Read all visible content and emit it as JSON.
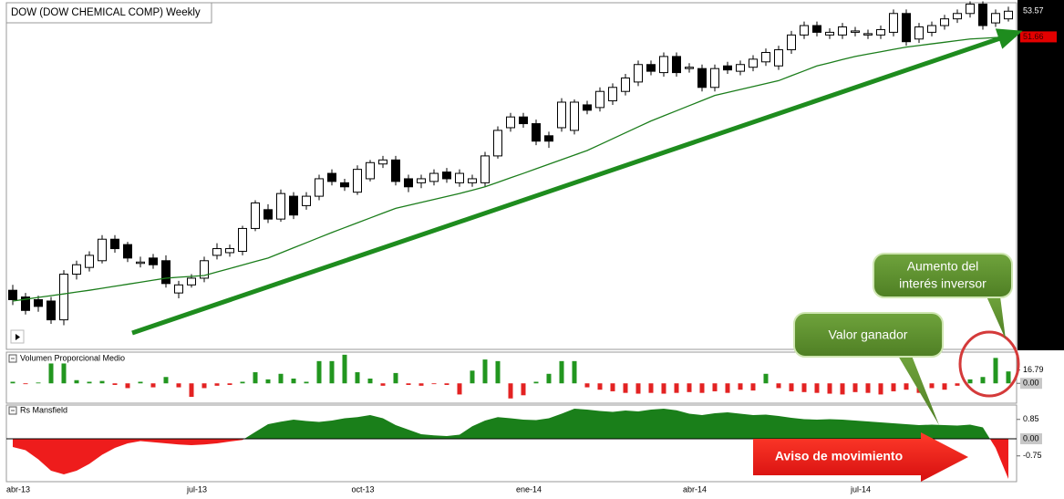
{
  "chart_data": [
    {
      "type": "candlestick",
      "title": "DOW (DOW CHEMICAL COMP) Weekly",
      "categories": [
        "abr-13",
        null,
        null,
        null,
        null,
        null,
        null,
        null,
        null,
        null,
        null,
        null,
        null,
        null,
        "jul-13",
        null,
        null,
        null,
        null,
        null,
        null,
        null,
        null,
        null,
        null,
        null,
        null,
        "oct-13",
        null,
        null,
        null,
        null,
        null,
        null,
        null,
        null,
        null,
        null,
        null,
        null,
        "ene-14",
        null,
        null,
        null,
        null,
        null,
        null,
        null,
        null,
        null,
        null,
        null,
        null,
        "abr-14",
        null,
        null,
        null,
        null,
        null,
        null,
        null,
        null,
        null,
        null,
        null,
        null,
        "jul-14",
        null,
        null,
        null,
        null,
        null,
        null,
        null,
        null,
        null,
        null,
        null,
        null
      ],
      "open": [
        32.8,
        32.3,
        32.1,
        32.0,
        30.6,
        34.0,
        34.5,
        35.0,
        36.6,
        36.2,
        34.8,
        35.2,
        35.0,
        32.6,
        33.2,
        33.7,
        35.4,
        35.6,
        35.7,
        37.4,
        38.8,
        38.1,
        39.8,
        39.1,
        39.8,
        41.5,
        40.8,
        40.1,
        41.1,
        42.2,
        42.5,
        41.1,
        40.8,
        40.9,
        41.6,
        40.8,
        40.8,
        40.8,
        42.8,
        44.9,
        45.7,
        45.2,
        44.3,
        44.9,
        44.7,
        46.6,
        46.4,
        46.9,
        47.6,
        48.3,
        49.6,
        49.0,
        50.2,
        49.3,
        49.3,
        47.9,
        49.5,
        49.1,
        49.4,
        49.8,
        49.5,
        50.7,
        51.8,
        52.5,
        51.8,
        51.8,
        52.0,
        51.8,
        51.8,
        52.0,
        53.4,
        51.5,
        52.0,
        52.5,
        53.0,
        53.4,
        54.1,
        52.7,
        53.0
      ],
      "high": [
        33.2,
        32.6,
        32.4,
        32.3,
        34.3,
        35.0,
        35.7,
        36.9,
        36.9,
        36.4,
        35.3,
        35.5,
        35.4,
        33.5,
        34.0,
        35.3,
        36.3,
        36.2,
        37.6,
        39.5,
        39.2,
        40.3,
        40.1,
        40.1,
        41.4,
        41.8,
        41.1,
        42.1,
        42.5,
        42.8,
        42.8,
        41.4,
        41.4,
        41.8,
        41.9,
        41.8,
        41.4,
        43.1,
        45.0,
        46.0,
        46.0,
        45.5,
        44.6,
        47.1,
        47.0,
        46.9,
        47.9,
        48.2,
        48.9,
        49.9,
        49.9,
        50.5,
        50.5,
        49.7,
        49.6,
        49.6,
        49.8,
        49.9,
        50.3,
        50.8,
        51.0,
        52.1,
        52.8,
        52.8,
        52.3,
        52.7,
        52.4,
        52.2,
        52.5,
        53.7,
        53.7,
        52.7,
        52.8,
        53.3,
        53.7,
        54.3,
        54.3,
        53.7,
        53.9
      ],
      "low": [
        31.7,
        31.0,
        31.2,
        30.3,
        30.2,
        33.6,
        34.2,
        34.8,
        35.6,
        34.9,
        34.5,
        34.4,
        33.0,
        32.2,
        33.0,
        33.4,
        35.1,
        35.3,
        35.4,
        37.2,
        37.8,
        37.9,
        38.1,
        38.8,
        39.5,
        40.6,
        40.2,
        39.9,
        40.9,
        41.9,
        40.6,
        40.1,
        40.4,
        40.6,
        40.8,
        40.5,
        40.5,
        40.5,
        42.6,
        44.6,
        44.9,
        43.6,
        43.4,
        44.6,
        44.4,
        45.9,
        46.1,
        46.6,
        47.3,
        48.0,
        48.8,
        48.7,
        48.7,
        49.0,
        47.6,
        47.6,
        48.9,
        48.8,
        49.1,
        49.5,
        49.2,
        50.4,
        51.5,
        51.7,
        51.5,
        51.5,
        51.7,
        51.5,
        51.5,
        51.7,
        51.0,
        51.2,
        51.7,
        52.2,
        52.7,
        53.1,
        52.2,
        52.4,
        52.8
      ],
      "close": [
        32.1,
        31.3,
        31.6,
        30.6,
        34.0,
        34.7,
        35.4,
        36.6,
        35.9,
        35.2,
        34.9,
        34.7,
        33.3,
        33.2,
        33.7,
        35.0,
        35.9,
        35.9,
        37.4,
        39.3,
        38.1,
        40.0,
        38.4,
        39.8,
        41.1,
        40.9,
        40.5,
        41.8,
        42.3,
        42.5,
        40.9,
        40.5,
        41.1,
        41.5,
        41.1,
        41.5,
        41.1,
        42.8,
        44.7,
        45.7,
        45.2,
        43.9,
        43.9,
        46.8,
        46.8,
        46.2,
        47.6,
        47.9,
        48.6,
        49.6,
        49.1,
        50.2,
        49.0,
        49.4,
        47.9,
        49.3,
        49.2,
        49.6,
        50.0,
        50.5,
        50.7,
        51.8,
        52.5,
        52.0,
        52.0,
        52.4,
        52.1,
        51.9,
        52.2,
        53.4,
        51.3,
        52.4,
        52.5,
        53.0,
        53.4,
        54.1,
        52.5,
        53.4,
        53.57
      ],
      "up_color": "#ffffff",
      "down_color": "#000000",
      "ma_values": [
        32.0,
        32.13,
        32.27,
        32.4,
        32.53,
        32.67,
        32.8,
        32.95,
        33.1,
        33.25,
        33.4,
        33.55,
        33.7,
        33.77,
        33.83,
        33.9,
        34.16,
        34.42,
        34.68,
        34.94,
        35.2,
        35.58,
        35.96,
        36.34,
        36.72,
        37.1,
        37.46,
        37.82,
        38.18,
        38.54,
        38.9,
        39.12,
        39.34,
        39.56,
        39.78,
        40.0,
        40.25,
        40.5,
        40.83,
        41.17,
        41.5,
        41.84,
        42.18,
        42.52,
        42.86,
        43.2,
        43.64,
        44.08,
        44.52,
        44.96,
        45.4,
        45.78,
        46.16,
        46.54,
        46.92,
        47.3,
        47.52,
        47.74,
        47.96,
        48.18,
        48.4,
        48.77,
        49.13,
        49.5,
        49.73,
        49.97,
        50.2,
        50.38,
        50.55,
        50.73,
        50.9,
        51.02,
        51.14,
        51.26,
        51.38,
        51.5,
        51.55,
        51.61,
        51.66
      ],
      "ma_color": "#1b7d1b",
      "ylim": [
        28.4,
        54.2
      ],
      "annotations": [
        [
          "Aumento del",
          "interés inversor"
        ],
        [
          "Valor ganador"
        ],
        [
          "Aviso de movimiento"
        ]
      ]
    },
    {
      "type": "bar",
      "title": "Volumen Proporcional Medio",
      "values": [
        2,
        -1,
        1,
        25,
        25,
        4,
        2,
        3,
        -2,
        -6,
        2,
        -5,
        8,
        -5,
        -17,
        -6,
        -3,
        -2,
        2,
        14,
        5,
        12,
        6,
        2,
        28,
        28,
        36,
        14,
        6,
        -3,
        13,
        -2,
        -3,
        -1,
        -2,
        -14,
        16,
        30,
        28,
        -19,
        -15,
        2,
        12,
        28,
        28,
        -5,
        -8,
        -10,
        -12,
        -13,
        -12,
        -13,
        -12,
        -11,
        -12,
        -10,
        -12,
        -8,
        -9,
        12,
        -6,
        -10,
        -11,
        -12,
        -13,
        -14,
        -11,
        -12,
        -14,
        -10,
        -8,
        -12,
        -6,
        -8,
        -3,
        5,
        8,
        32,
        15
      ],
      "up_color": "#22961f",
      "down_color": "#e32222",
      "ylim": [
        -25,
        37
      ],
      "yticks": [
        {
          "value": 0,
          "label": "0.00"
        },
        16.79
      ]
    },
    {
      "type": "area",
      "title": "Rs Mansfield",
      "values": [
        -0.36,
        -0.5,
        -0.9,
        -1.4,
        -1.56,
        -1.4,
        -1.1,
        -0.7,
        -0.4,
        -0.2,
        -0.1,
        -0.15,
        -0.2,
        -0.25,
        -0.28,
        -0.25,
        -0.2,
        -0.12,
        -0.05,
        0.3,
        0.64,
        0.75,
        0.84,
        0.78,
        0.74,
        0.8,
        0.9,
        0.95,
        1.04,
        0.9,
        0.6,
        0.4,
        0.2,
        0.15,
        0.12,
        0.18,
        0.55,
        0.8,
        0.95,
        0.9,
        0.84,
        0.82,
        0.9,
        1.1,
        1.32,
        1.28,
        1.22,
        1.18,
        1.24,
        1.2,
        1.28,
        1.32,
        1.25,
        1.1,
        1.04,
        1.12,
        1.16,
        1.1,
        1.04,
        1.06,
        1.0,
        0.92,
        0.86,
        0.84,
        0.86,
        0.84,
        0.8,
        0.76,
        0.72,
        0.68,
        0.64,
        0.6,
        0.62,
        0.6,
        0.58,
        0.62,
        0.5,
        -0.4,
        -1.76
      ],
      "pos_color": "#1a7f1a",
      "neg_color": "#ee1c1c",
      "zero_line": true,
      "ylim": [
        -1.88,
        1.4
      ],
      "yticks": [
        -0.75,
        {
          "value": 0,
          "label": "0.00"
        },
        0.85
      ]
    }
  ]
}
